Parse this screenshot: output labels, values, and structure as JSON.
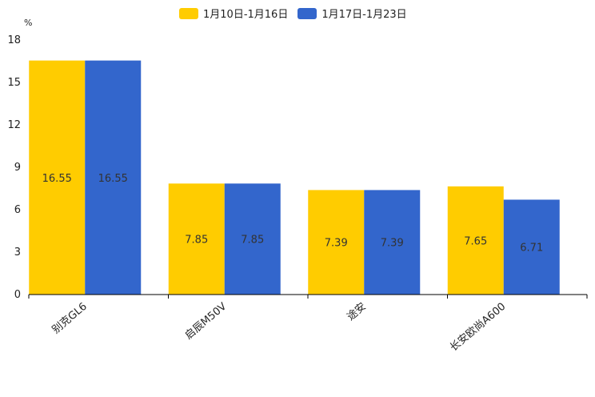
{
  "chart_data": {
    "type": "bar",
    "title": "",
    "unit_label": "%",
    "xlabel": "",
    "ylabel": "%",
    "ylim": [
      0,
      18
    ],
    "yticks": [
      0,
      3,
      6,
      9,
      12,
      15,
      18
    ],
    "categories": [
      "别克GL6",
      "启辰M50V",
      "途安",
      "长安欧尚A600"
    ],
    "series": [
      {
        "name": "1月10日-1月16日",
        "color": "#FFCC00",
        "values": [
          16.55,
          7.85,
          7.39,
          7.65
        ]
      },
      {
        "name": "1月17日-1月23日",
        "color": "#3366CC",
        "values": [
          16.55,
          7.85,
          7.39,
          6.71
        ]
      }
    ],
    "legend_position": "top-center",
    "grid": false
  }
}
